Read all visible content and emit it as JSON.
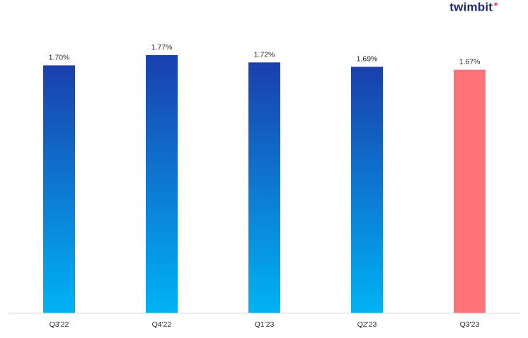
{
  "brand": {
    "logo_text": "twimbit"
  },
  "colors": {
    "bar_gradient_top": "#1a3fae",
    "bar_gradient_bottom": "#00b3f5",
    "highlight": "#ff7378",
    "axis": "#d9d9d9",
    "label_text": "#262626",
    "logo": "#1e2a78"
  },
  "chart_data": {
    "type": "bar",
    "categories": [
      "Q3'22",
      "Q4'22",
      "Q1'23",
      "Q2'23",
      "Q3'23"
    ],
    "values": [
      1.7,
      1.77,
      1.72,
      1.69,
      1.67
    ],
    "data_labels": [
      "1.70%",
      "1.77%",
      "1.72%",
      "1.69%",
      "1.67%"
    ],
    "highlighted_category": "Q3'23",
    "title": "",
    "xlabel": "",
    "ylabel": "",
    "ylim": [
      0,
      1.77
    ],
    "grid": false,
    "legend": "none"
  }
}
